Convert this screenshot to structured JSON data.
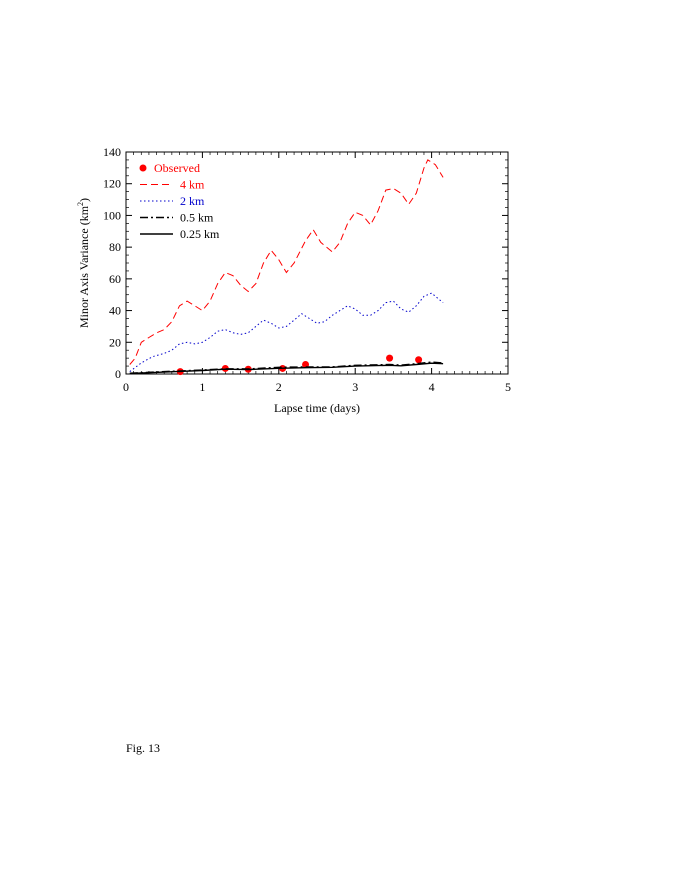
{
  "figure": {
    "caption": "Fig. 13"
  },
  "chart_data": {
    "type": "line",
    "xlabel": "Lapse time (days)",
    "ylabel": "Minor Axis Variance (km",
    "ylabel_superscript": "2",
    "ylabel_suffix": ")",
    "xlim": [
      0,
      5
    ],
    "ylim": [
      0,
      140
    ],
    "xticks": [
      "0",
      "1",
      "2",
      "3",
      "4",
      "5"
    ],
    "yticks": [
      "0",
      "20",
      "40",
      "60",
      "80",
      "100",
      "120",
      "140"
    ],
    "grid": false,
    "legend_position": "top-left",
    "series": [
      {
        "name": "Observed",
        "style": "points",
        "color": "#ff0000",
        "x": [
          0.71,
          1.3,
          1.6,
          2.05,
          2.35,
          3.45,
          3.83
        ],
        "y": [
          1.5,
          3.5,
          3,
          3.5,
          6,
          10,
          9
        ]
      },
      {
        "name": "4 km",
        "style": "dashed",
        "color": "#ff0000",
        "x": [
          0.05,
          0.12,
          0.2,
          0.3,
          0.4,
          0.5,
          0.6,
          0.7,
          0.8,
          0.9,
          1.0,
          1.1,
          1.2,
          1.3,
          1.4,
          1.5,
          1.6,
          1.7,
          1.8,
          1.9,
          2.0,
          2.1,
          2.2,
          2.35,
          2.45,
          2.55,
          2.7,
          2.8,
          2.9,
          3.0,
          3.1,
          3.2,
          3.3,
          3.4,
          3.5,
          3.6,
          3.7,
          3.8,
          3.9,
          3.95,
          4.05,
          4.15
        ],
        "y": [
          6,
          10,
          20,
          23,
          26,
          28,
          33,
          43,
          46,
          43,
          40,
          46,
          57,
          64,
          62,
          56,
          52,
          57,
          70,
          78,
          72,
          64,
          70,
          84,
          91,
          83,
          77,
          83,
          95,
          102,
          100,
          94,
          103,
          116,
          117,
          114,
          107,
          114,
          130,
          135,
          132,
          124
        ]
      },
      {
        "name": "2 km",
        "style": "dotted",
        "color": "#0000cc",
        "x": [
          0.05,
          0.2,
          0.35,
          0.5,
          0.6,
          0.7,
          0.8,
          0.9,
          1.0,
          1.1,
          1.2,
          1.3,
          1.4,
          1.5,
          1.6,
          1.7,
          1.8,
          1.9,
          2.0,
          2.1,
          2.2,
          2.3,
          2.4,
          2.5,
          2.6,
          2.7,
          2.8,
          2.9,
          3.0,
          3.1,
          3.2,
          3.3,
          3.4,
          3.5,
          3.6,
          3.7,
          3.8,
          3.9,
          4.0,
          4.1,
          4.15
        ],
        "y": [
          1.5,
          7,
          11,
          13,
          15,
          19,
          20,
          19,
          20,
          23,
          27,
          28,
          26,
          25,
          26,
          30,
          34,
          32,
          29,
          30,
          34,
          38,
          35,
          32,
          33,
          37,
          40,
          43,
          41,
          37,
          37,
          40,
          45,
          46,
          41,
          39,
          43,
          49,
          51,
          47,
          45
        ]
      },
      {
        "name": "0.5 km",
        "style": "dashdot",
        "color": "#000000",
        "x": [
          0.05,
          0.5,
          1.0,
          1.3,
          1.6,
          2.0,
          2.35,
          2.7,
          3.0,
          3.45,
          3.6,
          3.8,
          4.0,
          4.15
        ],
        "y": [
          0.5,
          1.5,
          2.5,
          3.3,
          3.2,
          4.2,
          4.5,
          4.5,
          5.5,
          6,
          5.6,
          6.5,
          7.5,
          7
        ]
      },
      {
        "name": "0.25 km",
        "style": "solid",
        "color": "#000000",
        "x": [
          0.05,
          0.5,
          1.0,
          1.3,
          1.6,
          2.0,
          2.35,
          2.7,
          3.0,
          3.45,
          3.6,
          3.8,
          4.0,
          4.15
        ],
        "y": [
          0.3,
          1.2,
          2.2,
          3,
          2.8,
          3.6,
          4,
          4.2,
          5,
          5.5,
          5.2,
          6,
          6.8,
          6.5
        ]
      }
    ]
  }
}
